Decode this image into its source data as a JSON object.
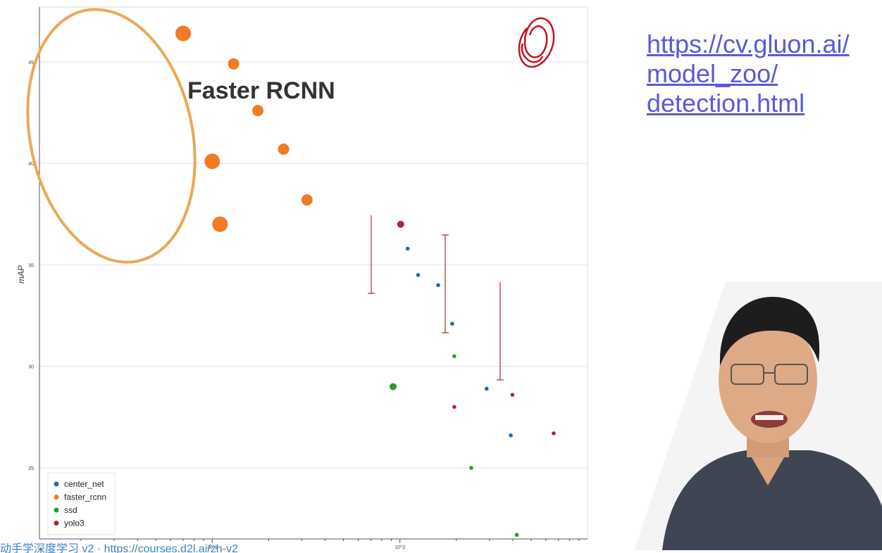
{
  "annotation_title": "Faster RCNN",
  "link_lines": [
    "https://cv.gluon.ai/",
    "model_zoo/",
    "detection.html"
  ],
  "bottom_caption": "动手学深度学习 v2 · https://courses.d2l.ai/zh-v2",
  "colors": {
    "center_net": "#1f6aa5",
    "faster_rcnn": "#f07b23",
    "ssd": "#2c9a2c",
    "yolo3": "#b52233",
    "ellipse": "#eba757",
    "scribble": "#c4121e",
    "link": "#5a5ad6",
    "grid": "#e4e4e4"
  },
  "icons": [
    "scribble-annotation",
    "presenter-video"
  ],
  "chart_data": {
    "type": "scatter",
    "ylabel": "mAP",
    "xlabel": "",
    "xscale": "log",
    "ylim": [
      21.5,
      47.7
    ],
    "yticks": [
      25,
      30,
      35,
      40,
      45
    ],
    "xtick_labels": [
      "10^1",
      "10^2"
    ],
    "grid": true,
    "legend_position": "bottom-left",
    "series": [
      {
        "name": "center_net",
        "points": [
          [
            110,
            35.8
          ],
          [
            125,
            34.5
          ],
          [
            160,
            34.0
          ],
          [
            190,
            32.1
          ],
          [
            290,
            28.9
          ],
          [
            390,
            26.6
          ]
        ]
      },
      {
        "name": "faster_rcnn",
        "points": [
          [
            7,
            46.4
          ],
          [
            13,
            44.9
          ],
          [
            17.5,
            42.6
          ],
          [
            24,
            40.7
          ],
          [
            10,
            40.1
          ],
          [
            32,
            38.2
          ],
          [
            11,
            37.0
          ]
        ]
      },
      {
        "name": "ssd",
        "points": [
          [
            92,
            29.0
          ],
          [
            195,
            30.5
          ],
          [
            240,
            25.0
          ],
          [
            420,
            21.7
          ]
        ]
      },
      {
        "name": "yolo3",
        "points": [
          [
            101,
            37.0
          ],
          [
            195,
            28.0
          ],
          [
            398,
            28.6
          ],
          [
            660,
            26.7
          ]
        ]
      }
    ]
  }
}
